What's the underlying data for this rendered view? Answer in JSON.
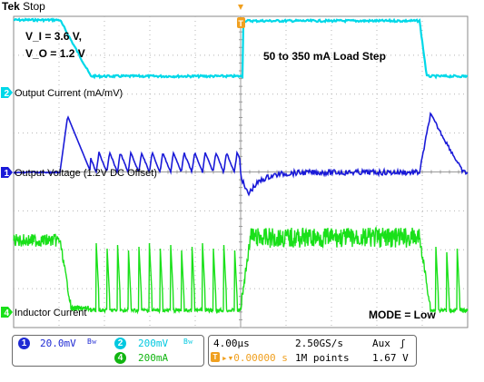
{
  "header": {
    "brand": "Tek",
    "state": "Stop"
  },
  "panel": {
    "ch1": {
      "number": "1",
      "scale": "20.0mV",
      "bw_symbol": "Bᴡ",
      "color": "#1f2ad4"
    },
    "ch2": {
      "number": "2",
      "scale": "200mV",
      "bw_symbol": "Bᴡ",
      "color": "#00c8e0"
    },
    "ch4": {
      "number": "4",
      "scale": "200mA",
      "color": "#11b511"
    },
    "timebase": "4.00µs",
    "sample_rate": "2.50GS/s",
    "record_length": "1M points",
    "trigger_delay": "▸▾0.00000 s",
    "trigger_source": "Aux",
    "trigger_slope": "ʃ",
    "trigger_level": "1.67 V"
  },
  "chart_data": {
    "type": "line",
    "title": "50 to 350 mA Load Step",
    "annotations": [
      "V_I = 3.6 V,",
      "V_O = 1.2 V",
      "MODE = Low"
    ],
    "x_divisions": 10,
    "y_divisions": 8,
    "grid": true,
    "series": [
      {
        "name": "Output Current (mA/mV)",
        "channel": "2",
        "color": "#00d8e8"
      },
      {
        "name": "Output Voltage (1.2V DC Offset)",
        "channel": "1",
        "color": "#1a1ad8"
      },
      {
        "name": "Inductor Current",
        "channel": "4",
        "color": "#19e019"
      }
    ],
    "trigger_marker": "T"
  }
}
